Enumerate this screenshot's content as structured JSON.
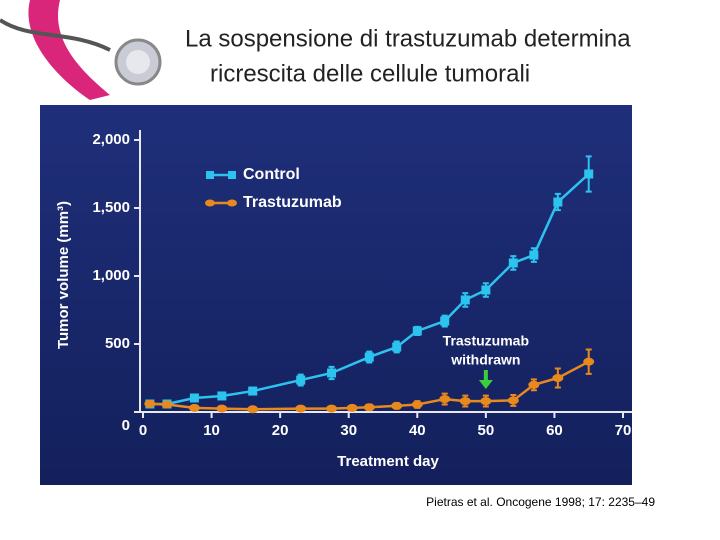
{
  "slide": {
    "title_lines": [
      "La sospensione di trastuzumab  determina",
      "ricrescita delle cellule tumorali"
    ],
    "citation": "Pietras et al. Oncogene 1998; 17: 2235–49"
  },
  "chart_data": {
    "type": "line",
    "x_label": "Treatment day",
    "y_label": "Tumor volume (mm³)",
    "xlim": [
      0,
      70
    ],
    "xticks": [
      0,
      10,
      20,
      30,
      40,
      50,
      60,
      70
    ],
    "ylim": [
      0,
      2000
    ],
    "yticks": [
      0,
      {
        "value": 500,
        "label": "500"
      },
      {
        "value": 1000,
        "label": "1,000"
      },
      {
        "value": 1500,
        "label": "1,500"
      },
      {
        "value": 2000,
        "label": "2,000"
      }
    ],
    "legend": "upper left",
    "series": [
      {
        "name": "Control",
        "color": "#2cc4ef",
        "x": [
          1,
          3.5,
          7.5,
          11.5,
          16,
          23,
          27.5,
          33,
          37,
          40,
          44,
          47,
          50,
          54,
          57,
          60.5,
          65
        ],
        "values": [
          59,
          59,
          103,
          118,
          154,
          235,
          287,
          404,
          478,
          596,
          669,
          824,
          897,
          1096,
          1154,
          1544,
          1750
        ],
        "errors": [
          20,
          20,
          20,
          20,
          25,
          40,
          45,
          40,
          40,
          30,
          40,
          50,
          50,
          50,
          50,
          60,
          130
        ]
      },
      {
        "name": "Trastuzumab",
        "color": "#e8891e",
        "x": [
          1,
          3.5,
          7.5,
          11.5,
          16,
          23,
          27.5,
          30.5,
          33,
          37,
          40,
          44,
          47,
          50,
          54,
          57,
          60.5,
          65
        ],
        "values": [
          60,
          55,
          30,
          25,
          20,
          25,
          25,
          30,
          35,
          45,
          55,
          95,
          80,
          80,
          85,
          200,
          250,
          370
        ],
        "errors": [
          20,
          15,
          15,
          15,
          15,
          15,
          15,
          15,
          20,
          20,
          25,
          40,
          40,
          40,
          40,
          40,
          70,
          90
        ]
      }
    ],
    "annotation": {
      "lines": [
        "Trastuzumab",
        "withdrawn"
      ],
      "x": 50,
      "color": "#3ccf3c"
    }
  }
}
